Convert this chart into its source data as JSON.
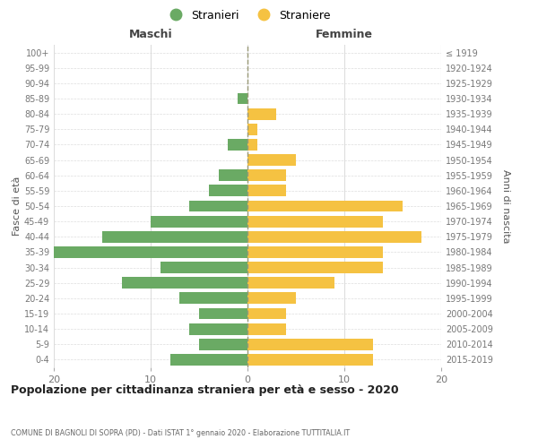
{
  "age_groups": [
    "0-4",
    "5-9",
    "10-14",
    "15-19",
    "20-24",
    "25-29",
    "30-34",
    "35-39",
    "40-44",
    "45-49",
    "50-54",
    "55-59",
    "60-64",
    "65-69",
    "70-74",
    "75-79",
    "80-84",
    "85-89",
    "90-94",
    "95-99",
    "100+"
  ],
  "birth_years": [
    "2015-2019",
    "2010-2014",
    "2005-2009",
    "2000-2004",
    "1995-1999",
    "1990-1994",
    "1985-1989",
    "1980-1984",
    "1975-1979",
    "1970-1974",
    "1965-1969",
    "1960-1964",
    "1955-1959",
    "1950-1954",
    "1945-1949",
    "1940-1944",
    "1935-1939",
    "1930-1934",
    "1925-1929",
    "1920-1924",
    "≤ 1919"
  ],
  "maschi": [
    8,
    5,
    6,
    5,
    7,
    13,
    9,
    20,
    15,
    10,
    6,
    4,
    3,
    0,
    2,
    0,
    0,
    1,
    0,
    0,
    0
  ],
  "femmine": [
    13,
    13,
    4,
    4,
    5,
    9,
    14,
    14,
    18,
    14,
    16,
    4,
    4,
    5,
    1,
    1,
    3,
    0,
    0,
    0,
    0
  ],
  "color_maschi": "#6aaa64",
  "color_femmine": "#f5c242",
  "title": "Popolazione per cittadinanza straniera per età e sesso - 2020",
  "subtitle": "COMUNE DI BAGNOLI DI SOPRA (PD) - Dati ISTAT 1° gennaio 2020 - Elaborazione TUTTITALIA.IT",
  "xlabel_left": "Maschi",
  "xlabel_right": "Femmine",
  "ylabel_left": "Fasce di età",
  "ylabel_right": "Anni di nascita",
  "legend_maschi": "Stranieri",
  "legend_femmine": "Straniere",
  "xlim": 20,
  "background_color": "#ffffff",
  "grid_color": "#dddddd",
  "center_line_color": "#999977"
}
